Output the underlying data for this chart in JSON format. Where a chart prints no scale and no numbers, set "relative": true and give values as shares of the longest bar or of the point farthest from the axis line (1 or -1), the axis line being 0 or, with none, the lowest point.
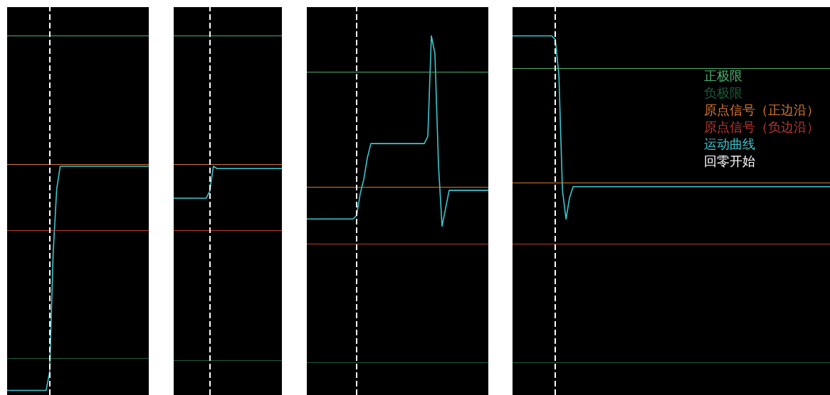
{
  "chart_data": [
    {
      "type": "line",
      "relative": true,
      "tick_labels": false,
      "legend": false,
      "line_style": "solid",
      "categories": [
        null,
        null,
        null,
        null,
        null,
        null,
        null,
        null,
        null,
        null,
        null,
        null,
        null,
        null,
        null,
        null,
        null,
        null,
        null,
        null,
        null,
        null,
        null,
        null,
        null,
        null,
        null,
        null,
        null,
        null,
        null,
        null,
        null,
        null,
        null,
        null,
        null,
        null,
        null,
        null,
        null
      ],
      "series": [
        {
          "color": "#3cc8d0",
          "values": [
            0.02,
            0.02,
            0.02,
            0.02,
            0.02,
            0.02,
            0.02,
            0.02,
            0.02,
            0.02,
            0.02,
            0.02,
            0.1,
            0.62,
            0.9,
            1,
            1,
            1,
            1,
            1,
            1,
            1,
            1,
            1,
            1,
            1,
            1,
            1,
            1,
            1,
            1,
            1,
            1,
            1,
            1,
            1,
            1,
            1,
            1,
            1,
            1
          ]
        }
      ],
      "ref_lines": [
        {
          "axis": "y",
          "value": 1.57,
          "color": "#4caf6e"
        },
        {
          "axis": "y",
          "value": 0.16,
          "color": "#1e5c3c"
        },
        {
          "axis": "y",
          "value": 1.01,
          "color": "#d9782d"
        },
        {
          "axis": "y",
          "value": 0.72,
          "color": "#b83a32"
        },
        {
          "axis": "x",
          "color": "#ffffff",
          "line_style": "dashed"
        }
      ]
    },
    {
      "type": "line",
      "relative": true,
      "tick_labels": false,
      "legend": false,
      "line_style": "solid",
      "categories": [
        null,
        null,
        null,
        null,
        null,
        null,
        null,
        null,
        null,
        null,
        null,
        null,
        null,
        null,
        null,
        null,
        null,
        null,
        null,
        null,
        null,
        null,
        null,
        null,
        null,
        null,
        null,
        null,
        null,
        null,
        null
      ],
      "series": [
        {
          "color": "#3cc8d0",
          "values": [
            0.86,
            0.86,
            0.86,
            0.86,
            0.86,
            0.86,
            0.86,
            0.86,
            0.86,
            0.86,
            0.89,
            1,
            0.99,
            0.99,
            0.99,
            0.99,
            0.99,
            0.99,
            0.99,
            0.99,
            0.99,
            0.99,
            0.99,
            0.99,
            0.99,
            0.99,
            0.99,
            0.99,
            0.99,
            0.99,
            0.99
          ]
        }
      ],
      "ref_lines": [
        {
          "axis": "y",
          "value": 1.57,
          "color": "#4caf6e"
        },
        {
          "axis": "y",
          "value": 0.15,
          "color": "#1e5c3c"
        },
        {
          "axis": "y",
          "value": 1.01,
          "color": "#d9782d"
        },
        {
          "axis": "y",
          "value": 0.72,
          "color": "#b83a32"
        },
        {
          "axis": "x",
          "color": "#ffffff",
          "line_style": "dashed"
        }
      ]
    },
    {
      "type": "line",
      "relative": true,
      "tick_labels": false,
      "legend": false,
      "line_style": "solid",
      "categories": [
        null,
        null,
        null,
        null,
        null,
        null,
        null,
        null,
        null,
        null,
        null,
        null,
        null,
        null,
        null,
        null,
        null,
        null,
        null,
        null,
        null,
        null,
        null,
        null,
        null,
        null,
        null,
        null,
        null,
        null,
        null,
        null,
        null,
        null,
        null,
        null,
        null,
        null,
        null,
        null,
        null,
        null,
        null,
        null,
        null,
        null,
        null,
        null,
        null,
        null,
        null,
        null
      ],
      "series": [
        {
          "color": "#3cc8d0",
          "values": [
            0.49,
            0.49,
            0.49,
            0.49,
            0.49,
            0.49,
            0.49,
            0.49,
            0.49,
            0.49,
            0.49,
            0.49,
            0.49,
            0.49,
            0.5,
            0.56,
            0.6,
            0.66,
            0.7,
            0.7,
            0.7,
            0.7,
            0.7,
            0.7,
            0.7,
            0.7,
            0.7,
            0.7,
            0.7,
            0.7,
            0.7,
            0.7,
            0.7,
            0.7,
            0.72,
            1,
            0.95,
            0.64,
            0.47,
            0.52,
            0.57,
            0.57,
            0.57,
            0.57,
            0.57,
            0.57,
            0.57,
            0.57,
            0.57,
            0.57,
            0.57,
            0.57
          ]
        }
      ],
      "ref_lines": [
        {
          "axis": "y",
          "value": 0.9,
          "color": "#4caf6e"
        },
        {
          "axis": "y",
          "value": 0.09,
          "color": "#1e5c3c"
        },
        {
          "axis": "y",
          "value": 0.58,
          "color": "#d9782d"
        },
        {
          "axis": "y",
          "value": 0.42,
          "color": "#b83a32"
        },
        {
          "axis": "x",
          "color": "#ffffff",
          "line_style": "dashed"
        }
      ]
    },
    {
      "type": "line",
      "relative": true,
      "tick_labels": false,
      "legend": "top right",
      "line_style": "solid",
      "categories": [
        null,
        null,
        null,
        null,
        null,
        null,
        null,
        null,
        null,
        null,
        null,
        null,
        null,
        null,
        null,
        null,
        null,
        null,
        null,
        null,
        null,
        null,
        null,
        null,
        null,
        null,
        null,
        null,
        null,
        null,
        null,
        null,
        null,
        null,
        null,
        null,
        null,
        null,
        null,
        null,
        null,
        null,
        null,
        null,
        null,
        null,
        null,
        null,
        null,
        null,
        null,
        null,
        null,
        null,
        null,
        null,
        null,
        null,
        null,
        null,
        null,
        null,
        null,
        null,
        null,
        null,
        null,
        null,
        null,
        null,
        null,
        null,
        null,
        null,
        null,
        null,
        null,
        null,
        null,
        null,
        null,
        null,
        null,
        null,
        null,
        null,
        null,
        null,
        null,
        null
      ],
      "series": [
        {
          "name": "运动曲线",
          "color": "#3cc8d0",
          "values": [
            1,
            1,
            1,
            1,
            1,
            1,
            1,
            1,
            1,
            1,
            1,
            1,
            0.99,
            0.89,
            0.57,
            0.49,
            0.55,
            0.58,
            0.58,
            0.58,
            0.58,
            0.58,
            0.58,
            0.58,
            0.58,
            0.58,
            0.58,
            0.58,
            0.58,
            0.58,
            0.58,
            0.58,
            0.58,
            0.58,
            0.58,
            0.58,
            0.58,
            0.58,
            0.58,
            0.58,
            0.58,
            0.58,
            0.58,
            0.58,
            0.58,
            0.58,
            0.58,
            0.58,
            0.58,
            0.58,
            0.58,
            0.58,
            0.58,
            0.58,
            0.58,
            0.58,
            0.58,
            0.58,
            0.58,
            0.58,
            0.58,
            0.58,
            0.58,
            0.58,
            0.58,
            0.58,
            0.58,
            0.58,
            0.58,
            0.58,
            0.58,
            0.58,
            0.58,
            0.58,
            0.58,
            0.58,
            0.58,
            0.58,
            0.58,
            0.58,
            0.58,
            0.58,
            0.58,
            0.58,
            0.58,
            0.58,
            0.58,
            0.58,
            0.58,
            0.58
          ]
        }
      ],
      "ref_lines": [
        {
          "axis": "y",
          "value": 0.91,
          "label": "正极限",
          "color": "#4caf6e"
        },
        {
          "axis": "y",
          "value": 0.09,
          "label": "负极限",
          "color": "#1e5c3c"
        },
        {
          "axis": "y",
          "value": 0.59,
          "label": "原点信号（正边沿）",
          "color": "#d9782d"
        },
        {
          "axis": "y",
          "value": 0.42,
          "label": "原点信号（负边沿）",
          "color": "#b83a32"
        },
        {
          "axis": "x",
          "label": "回零开始",
          "color": "#ffffff",
          "line_style": "dashed"
        }
      ]
    }
  ]
}
